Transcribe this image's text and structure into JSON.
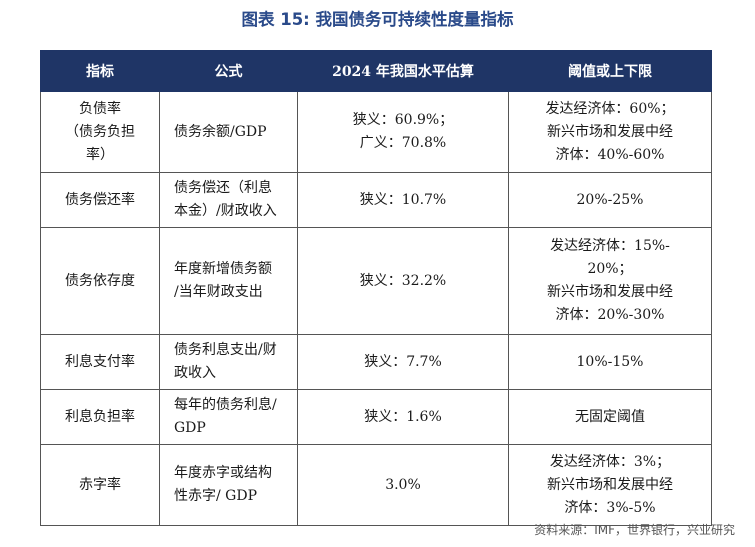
{
  "title": "图表 15: 我国债务可持续性度量指标",
  "headers": [
    "指标",
    "公式",
    "2024 年我国水平估算",
    "阈值或上下限"
  ],
  "rows": [
    {
      "indicator": [
        "负债率",
        "（债务负担",
        "率）"
      ],
      "formula": [
        "债务余额/GDP"
      ],
      "estimate": [
        "狭义：60.9%；",
        "广义：70.8%"
      ],
      "threshold": [
        "发达经济体：60%；",
        "新兴市场和发展中经",
        "济体：40%-60%"
      ]
    },
    {
      "indicator": [
        "债务偿还率"
      ],
      "formula": [
        "债务偿还（利息",
        "本金）/财政收入"
      ],
      "estimate": [
        "狭义：10.7%"
      ],
      "threshold": [
        "20%-25%"
      ]
    },
    {
      "indicator": [
        "债务依存度"
      ],
      "formula": [
        "年度新增债务额",
        "/当年财政支出"
      ],
      "estimate": [
        "狭义：32.2%"
      ],
      "threshold": [
        "发达经济体：15%-",
        "20%；",
        "新兴市场和发展中经",
        "济体：20%-30%"
      ]
    },
    {
      "indicator": [
        "利息支付率"
      ],
      "formula": [
        "债务利息支出/财",
        "政收入"
      ],
      "estimate": [
        "狭义：7.7%"
      ],
      "threshold": [
        "10%-15%"
      ]
    },
    {
      "indicator": [
        "利息负担率"
      ],
      "formula": [
        "每年的债务利息/",
        "GDP"
      ],
      "estimate": [
        "狭义：1.6%"
      ],
      "threshold": [
        "无固定阈值"
      ]
    },
    {
      "indicator": [
        "赤字率"
      ],
      "formula": [
        "年度赤字或结构",
        "性赤字/ GDP"
      ],
      "estimate": [
        "3.0%"
      ],
      "threshold": [
        "发达经济体：3%；",
        "新兴市场和发展中经",
        "济体：3%-5%"
      ]
    }
  ],
  "source": "资料来源：IMF，世界银行，兴业研究",
  "colors": {
    "title": "#2a4a8a",
    "header_bg": "#1f3566",
    "header_text": "#ffffff"
  }
}
